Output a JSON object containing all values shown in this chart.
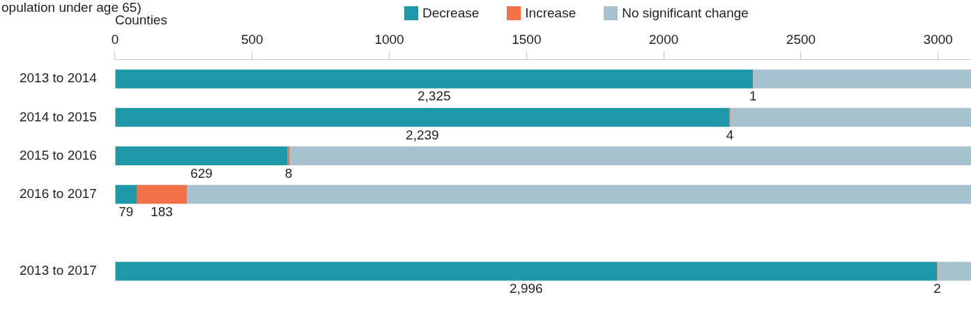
{
  "chart_data": {
    "type": "bar",
    "orientation": "horizontal",
    "stacked": true,
    "title": "opulation under age 65)",
    "xlabel": "Counties",
    "categories": [
      "2013 to 2014",
      "2014 to 2015",
      "2015 to 2016",
      "2016 to 2017",
      null,
      "2013 to 2017"
    ],
    "series": [
      {
        "name": "Decrease",
        "color": "#1e97a8",
        "values": [
          2325,
          2239,
          629,
          79,
          null,
          2996
        ],
        "value_labels": [
          "2,325",
          "2,239",
          "629",
          "79",
          null,
          "2,996"
        ]
      },
      {
        "name": "Increase",
        "color": "#f37148",
        "values": [
          1,
          4,
          8,
          183,
          null,
          2
        ],
        "value_labels": [
          "1",
          "4",
          "8",
          "183",
          null,
          "2"
        ]
      },
      {
        "name": "No significant change",
        "color": "#a7c1cf",
        "values": [
          794,
          877,
          2483,
          2858,
          null,
          122
        ]
      }
    ],
    "xlim": [
      0,
      3120
    ],
    "xticks": [
      0,
      500,
      1000,
      1500,
      2000,
      2500,
      3000
    ],
    "grid": false,
    "legend": "top"
  }
}
